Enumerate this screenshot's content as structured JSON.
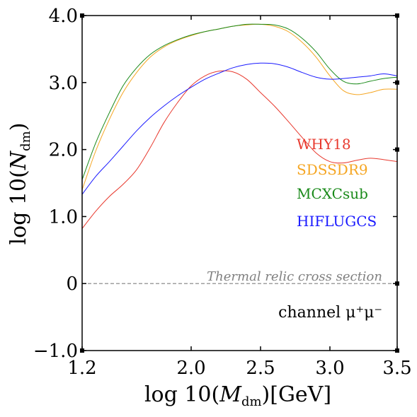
{
  "chart_data": {
    "type": "line",
    "xlabel": "log 10(M_dm)[GeV]",
    "ylabel": "log 10(N_dm)",
    "xlim": [
      1.2,
      3.5
    ],
    "ylim": [
      -1.0,
      4.0
    ],
    "xticks": [
      {
        "value": 1.2,
        "label": "1.2"
      },
      {
        "value": 2.0,
        "label": "2.0"
      },
      {
        "value": 2.5,
        "label": "2.5"
      },
      {
        "value": 3.0,
        "label": "3.0"
      },
      {
        "value": 3.5,
        "label": "3.5"
      }
    ],
    "yticks": [
      {
        "value": -1.0,
        "label": "−1.0"
      },
      {
        "value": 0.0,
        "label": "0"
      },
      {
        "value": 1.0,
        "label": "1.0"
      },
      {
        "value": 2.0,
        "label": "2.0"
      },
      {
        "value": 3.0,
        "label": "3.0"
      },
      {
        "value": 4.0,
        "label": "4.0"
      }
    ],
    "grid": false,
    "legend_position": "center-right",
    "series": [
      {
        "name": "WHY18",
        "color": "#e8392e",
        "x": [
          1.2,
          1.3,
          1.4,
          1.5,
          1.6,
          1.7,
          1.8,
          1.9,
          2.0,
          2.1,
          2.2,
          2.3,
          2.4,
          2.5,
          2.6,
          2.7,
          2.8,
          2.9,
          3.0,
          3.1,
          3.2,
          3.3,
          3.4,
          3.5
        ],
        "y": [
          0.82,
          1.08,
          1.3,
          1.48,
          1.7,
          2.03,
          2.4,
          2.7,
          2.95,
          3.1,
          3.17,
          3.16,
          3.05,
          2.85,
          2.65,
          2.42,
          2.18,
          1.95,
          1.82,
          1.8,
          1.84,
          1.87,
          1.85,
          1.82
        ]
      },
      {
        "name": "SDSSDR9",
        "color": "#f5a623",
        "x": [
          1.2,
          1.3,
          1.4,
          1.5,
          1.6,
          1.7,
          1.8,
          1.9,
          2.0,
          2.1,
          2.2,
          2.3,
          2.4,
          2.5,
          2.6,
          2.7,
          2.8,
          2.9,
          3.0,
          3.1,
          3.2,
          3.3,
          3.4,
          3.5
        ],
        "y": [
          1.4,
          1.98,
          2.45,
          2.85,
          3.15,
          3.38,
          3.53,
          3.63,
          3.7,
          3.76,
          3.8,
          3.84,
          3.86,
          3.87,
          3.84,
          3.76,
          3.6,
          3.38,
          3.1,
          2.88,
          2.82,
          2.85,
          2.9,
          2.9
        ]
      },
      {
        "name": "MCXCsub",
        "color": "#1a8a1a",
        "x": [
          1.2,
          1.3,
          1.4,
          1.5,
          1.6,
          1.7,
          1.8,
          1.9,
          2.0,
          2.1,
          2.2,
          2.3,
          2.4,
          2.5,
          2.6,
          2.7,
          2.8,
          2.9,
          3.0,
          3.1,
          3.2,
          3.3,
          3.4,
          3.5
        ],
        "y": [
          1.55,
          2.1,
          2.55,
          2.95,
          3.22,
          3.42,
          3.55,
          3.64,
          3.71,
          3.76,
          3.8,
          3.84,
          3.87,
          3.87,
          3.86,
          3.8,
          3.66,
          3.46,
          3.2,
          3.02,
          2.98,
          3.02,
          3.06,
          3.08
        ]
      },
      {
        "name": "HIFLUGCS",
        "color": "#1a1aff",
        "x": [
          1.2,
          1.3,
          1.4,
          1.5,
          1.6,
          1.7,
          1.8,
          1.9,
          2.0,
          2.1,
          2.2,
          2.3,
          2.4,
          2.5,
          2.6,
          2.7,
          2.8,
          2.9,
          3.0,
          3.1,
          3.2,
          3.3,
          3.4,
          3.5
        ],
        "y": [
          1.33,
          1.6,
          1.82,
          2.05,
          2.28,
          2.48,
          2.65,
          2.8,
          2.93,
          3.05,
          3.14,
          3.22,
          3.27,
          3.29,
          3.28,
          3.23,
          3.15,
          3.08,
          3.05,
          3.06,
          3.08,
          3.1,
          3.13,
          3.1
        ]
      }
    ],
    "reference_line": {
      "y": 0.0,
      "label": "Thermal relic cross section",
      "color": "#808080",
      "style": "dashed"
    },
    "annotation": "channel μ⁺μ⁻"
  }
}
